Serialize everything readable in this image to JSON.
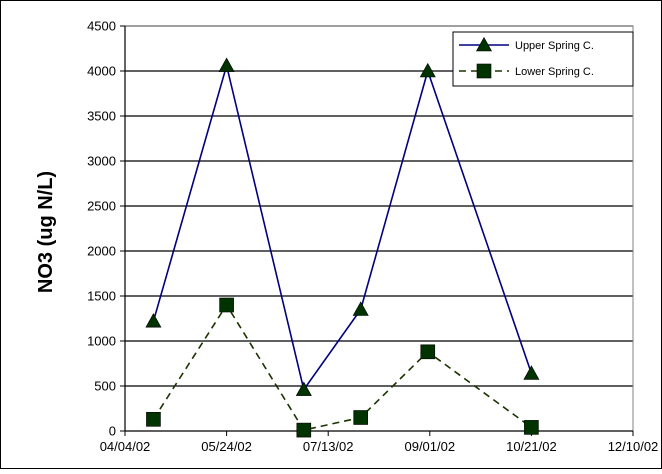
{
  "chart_data": {
    "type": "line",
    "title": "",
    "xlabel": "",
    "ylabel": "NO3 (ug N/L)",
    "ylim": [
      0,
      4500
    ],
    "yticks": [
      0,
      500,
      1000,
      1500,
      2000,
      2500,
      3000,
      3500,
      4000,
      4500
    ],
    "xlim": [
      "2002-04-04",
      "2002-12-10"
    ],
    "xticks": [
      "04/04/02",
      "05/24/02",
      "07/13/02",
      "09/01/02",
      "10/21/02",
      "12/10/02"
    ],
    "grid": "horizontal",
    "legend_position": "top-right",
    "series": [
      {
        "name": "Upper Spring C.",
        "color": "#000080",
        "line_style": "solid",
        "marker": "triangle",
        "marker_color": "#003300",
        "x": [
          "2002-04-18",
          "2002-05-24",
          "2002-07-01",
          "2002-07-29",
          "2002-08-31",
          "2002-10-21"
        ],
        "values": [
          1220,
          4060,
          460,
          1350,
          4000,
          640
        ]
      },
      {
        "name": "Lower Spring C.",
        "color": "#1a3300",
        "line_style": "dashed",
        "marker": "square",
        "marker_color": "#003300",
        "x": [
          "2002-04-18",
          "2002-05-24",
          "2002-07-01",
          "2002-07-29",
          "2002-08-31",
          "2002-10-21"
        ],
        "values": [
          130,
          1400,
          10,
          150,
          880,
          40
        ]
      }
    ]
  }
}
